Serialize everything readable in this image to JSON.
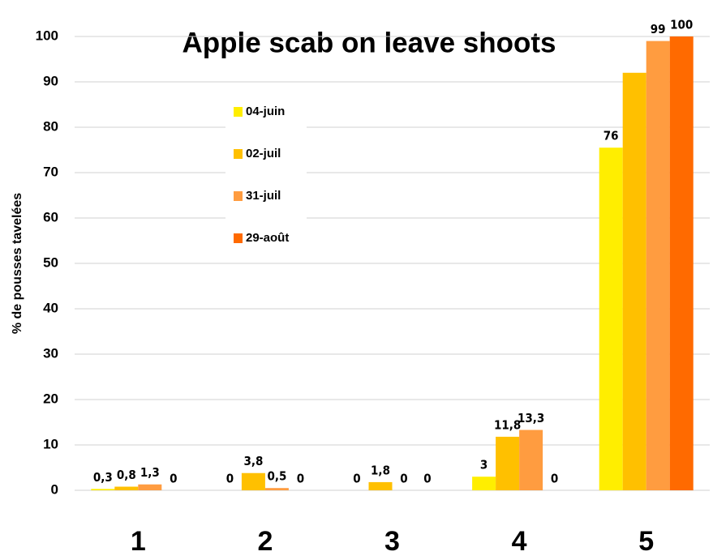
{
  "chart_data": {
    "type": "bar",
    "title": "Apple scab on leave shoots",
    "y_label": "% de pousses tavelées",
    "categories": [
      "1",
      "2",
      "3",
      "4",
      "5"
    ],
    "series": [
      {
        "name": "04-juin",
        "color": "#ffee00",
        "values": [
          0.3,
          0,
          0,
          3,
          75.5
        ],
        "value_labels": [
          "0,3",
          "0",
          "0",
          "3",
          "76"
        ]
      },
      {
        "name": "02-juil",
        "color": "#ffc000",
        "values": [
          0.8,
          3.8,
          1.8,
          11.8,
          92
        ],
        "value_labels": [
          "0,8",
          "3,8",
          "1,8",
          "11,8",
          null
        ]
      },
      {
        "name": "31-juil",
        "color": "#ff9c40",
        "values": [
          1.3,
          0.5,
          0,
          13.3,
          99
        ],
        "value_labels": [
          "1,3",
          "0,5",
          "0",
          "13,3",
          "99"
        ]
      },
      {
        "name": "29-août",
        "color": "#ff6a00",
        "values": [
          0,
          0,
          0,
          0,
          100
        ],
        "value_labels": [
          "0",
          "0",
          "0",
          "0",
          "100"
        ]
      }
    ],
    "ylim": [
      0,
      100
    ],
    "yticks": [
      0,
      10,
      20,
      30,
      40,
      50,
      60,
      70,
      80,
      90,
      100
    ],
    "grid": true
  }
}
